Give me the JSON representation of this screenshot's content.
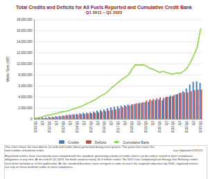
{
  "chart_data": {
    "type": "bar",
    "title": "Total Credits and Deficits for All Fuels Reported and Cumulative Credit Bank",
    "subtitle": "Q1 2011 – Q1 2023",
    "y_label": "Metric Tons (MT)",
    "categories": [
      "2011 Q1",
      null,
      "Q3",
      null,
      "2012 Q1",
      null,
      "Q3",
      null,
      "2013 Q1",
      null,
      "Q3",
      null,
      "2014 Q1",
      null,
      "Q3",
      null,
      "2015 Q1",
      null,
      "Q3",
      null,
      "2016 Q1",
      null,
      "Q3",
      null,
      "2017 Q1",
      null,
      "Q3",
      null,
      "2018 Q1",
      null,
      "Q3",
      null,
      "2019 Q1",
      null,
      "Q3",
      null,
      "2020 Q1",
      null,
      "Q3",
      null,
      "2021 Q1",
      null,
      "Q3",
      null,
      "2022 Q1",
      null,
      "Q3",
      null,
      "2023 Q1"
    ],
    "series": [
      {
        "name": "Credits",
        "type": "bar",
        "color": "#4a7ebb",
        "values": [
          150000,
          200000,
          250000,
          300000,
          350000,
          400000,
          500000,
          550000,
          600000,
          700000,
          800000,
          850000,
          900000,
          1000000,
          1100000,
          1150000,
          1200000,
          1300000,
          1500000,
          1600000,
          1700000,
          1900000,
          2100000,
          2200000,
          2300000,
          2400000,
          2500000,
          2600000,
          2600000,
          2700000,
          2800000,
          2900000,
          3000000,
          3100000,
          3300000,
          3400000,
          3500000,
          3400000,
          3900000,
          4000000,
          4100000,
          4400000,
          4700000,
          5000000,
          5500000,
          6200000,
          6700000,
          6800000,
          6500000
        ]
      },
      {
        "name": "Deficits",
        "type": "bar",
        "color": "#c0504d",
        "values": [
          50000,
          80000,
          100000,
          130000,
          250000,
          300000,
          350000,
          450000,
          550000,
          650000,
          700000,
          750000,
          800000,
          850000,
          900000,
          950000,
          1000000,
          1100000,
          1200000,
          1300000,
          1400000,
          1500000,
          1600000,
          1700000,
          1900000,
          2100000,
          2300000,
          2400000,
          2600000,
          2800000,
          2900000,
          3000000,
          3300000,
          3500000,
          3600000,
          3700000,
          3900000,
          3800000,
          4000000,
          4200000,
          4300000,
          4500000,
          4700000,
          4800000,
          4800000,
          5000000,
          5200000,
          5300000,
          5300000
        ]
      },
      {
        "name": "Cumulative Bank",
        "type": "line",
        "color": "#92d050",
        "values": [
          100000,
          250000,
          400000,
          600000,
          700000,
          850000,
          1000000,
          1200000,
          1300000,
          1400000,
          1600000,
          1800000,
          2000000,
          2200000,
          2500000,
          2800000,
          3100000,
          3400000,
          3800000,
          4200000,
          4500000,
          5000000,
          5600000,
          6100000,
          6600000,
          7100000,
          7500000,
          8000000,
          9000000,
          9800000,
          9700000,
          9800000,
          9600000,
          9200000,
          9000000,
          8700000,
          8400000,
          8600000,
          8400000,
          8200000,
          8100000,
          8300000,
          8200000,
          8600000,
          9200000,
          10200000,
          11500000,
          13000000,
          16400000
        ]
      }
    ],
    "ylim": [
      0,
      18000000
    ],
    "yticks": [
      0,
      {
        "value": 2000000,
        "label": "2,000,000"
      },
      {
        "value": 4000000,
        "label": "4,000,000"
      },
      {
        "value": 6000000,
        "label": "6,000,000"
      },
      {
        "value": 8000000,
        "label": "8,000,000"
      },
      {
        "value": 10000000,
        "label": "10,000,000"
      },
      {
        "value": 12000000,
        "label": "12,000,000"
      },
      {
        "value": 14000000,
        "label": "14,000,000"
      },
      {
        "value": 16000000,
        "label": "16,000,000"
      },
      {
        "value": 18000000,
        "label": "18,000,000"
      }
    ],
    "grid": true,
    "legend": "bottom",
    "annotations": {
      "caption": "This chart shows the total deficits (in red) and credits (blue) generated during each quarter. The green line tracks the total number of banked credits.",
      "updated": "Last Updated 07/31/23",
      "note": "Regulated entities have consistently over-complied with the standard, generating a bank of credits which can be sold or retired to meet compliance obligations at any time. At the end of Q1 2023, the bank stood at nearly 16.4 million credits. No 2022 Low Complexity/Low Energy Use Refining credits have been included as of this publication. As the standard becomes more stringent in order to reach the targeted reductions by 2030, regulated entities can rely on these banked credits to meet compliance."
    }
  }
}
